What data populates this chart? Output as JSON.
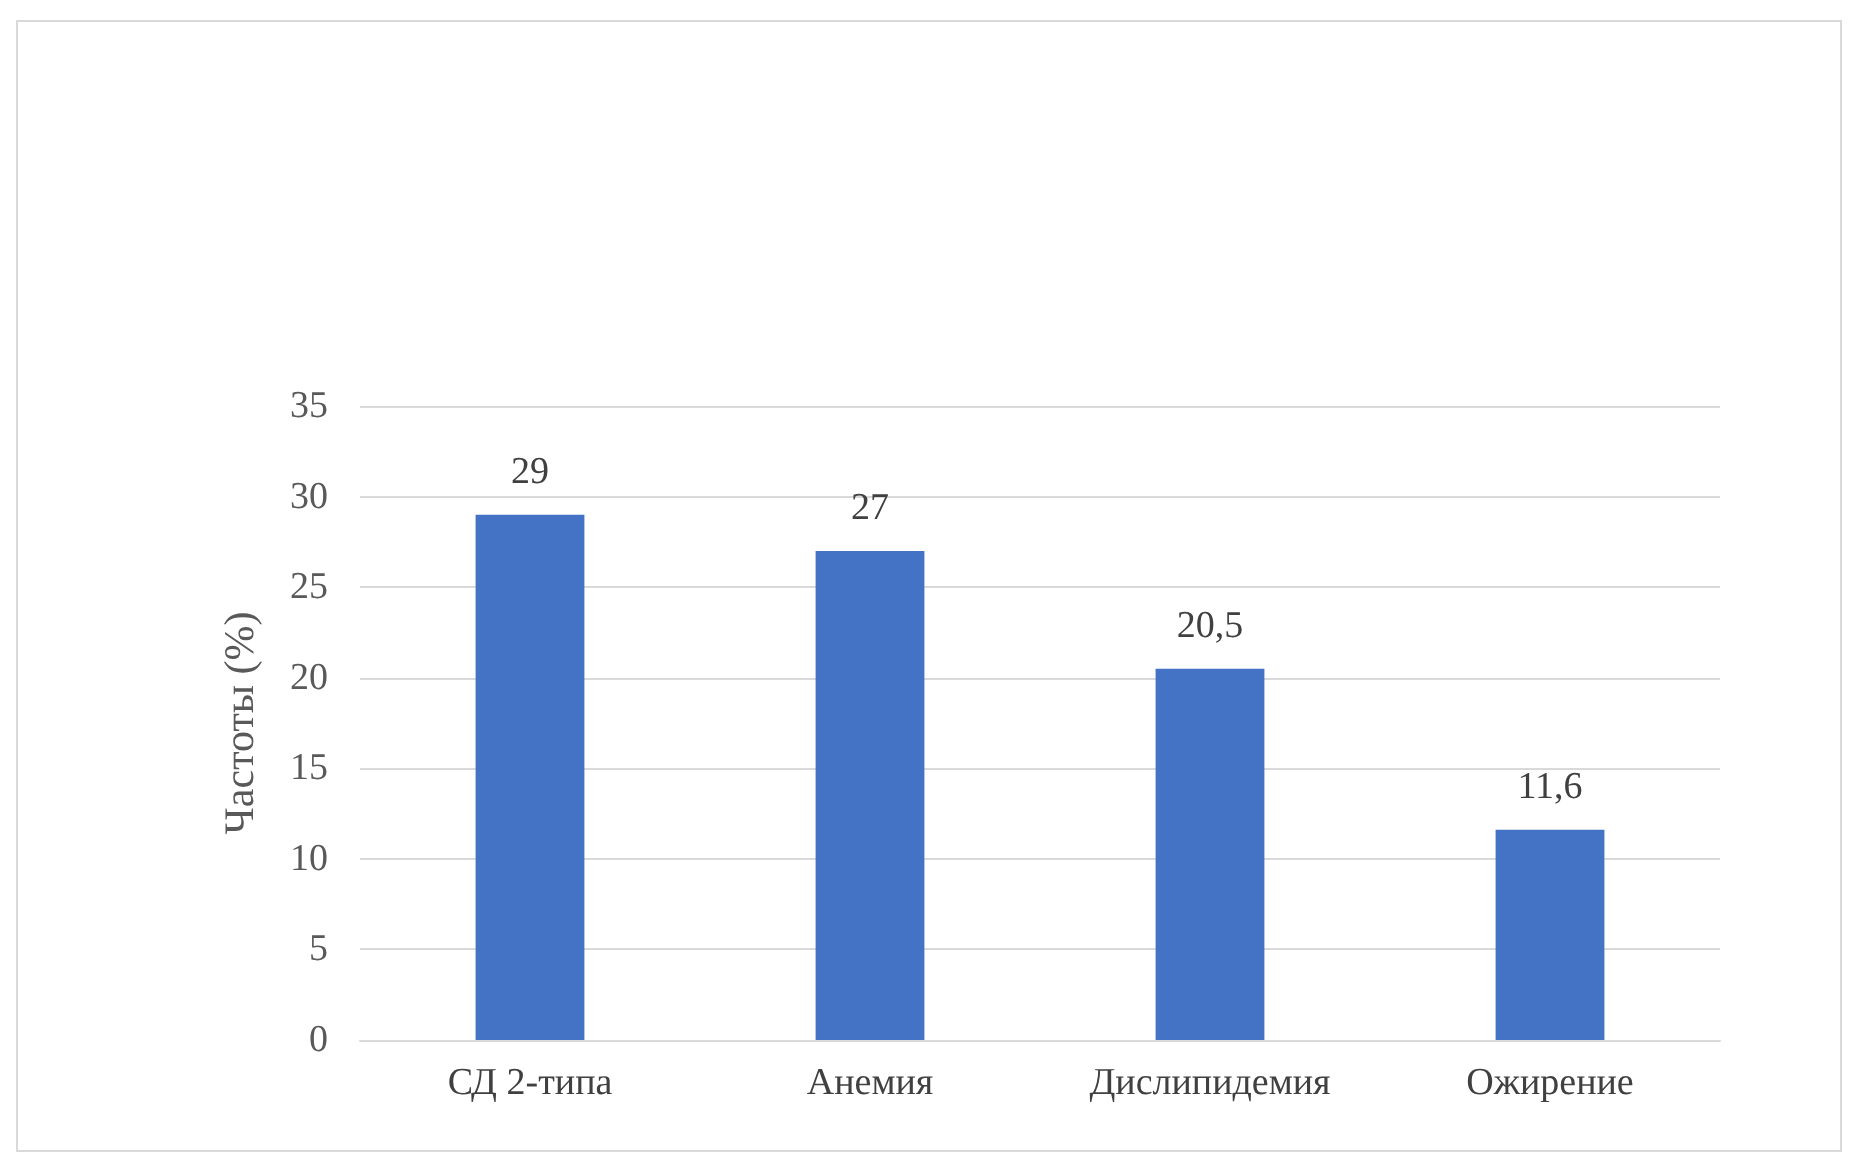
{
  "chart_data": {
    "type": "bar",
    "ylabel": "Частоты (%)",
    "categories": [
      "СД 2-типа",
      "Анемия",
      "Дислипидемия",
      "Ожирение"
    ],
    "values": [
      29,
      27,
      20.5,
      11.6
    ],
    "value_labels": [
      "29",
      "27",
      "20,5",
      "11,6"
    ],
    "color": "#4472c4",
    "ylim": [
      0,
      35
    ],
    "yticks": [
      0,
      5,
      10,
      15,
      20,
      25,
      30,
      35
    ],
    "grid": "y"
  }
}
